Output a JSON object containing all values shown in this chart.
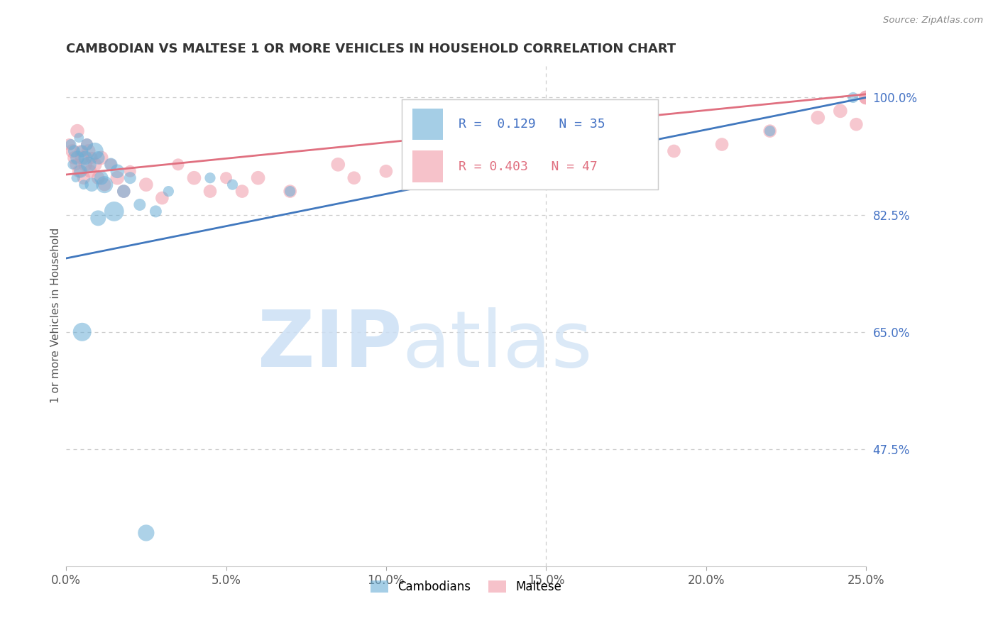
{
  "title": "CAMBODIAN VS MALTESE 1 OR MORE VEHICLES IN HOUSEHOLD CORRELATION CHART",
  "source": "Source: ZipAtlas.com",
  "ylabel": "1 or more Vehicles in Household",
  "xlim": [
    0.0,
    25.0
  ],
  "ylim": [
    30.0,
    105.0
  ],
  "xtick_labels": [
    "0.0%",
    "5.0%",
    "10.0%",
    "15.0%",
    "20.0%",
    "25.0%"
  ],
  "xtick_values": [
    0.0,
    5.0,
    10.0,
    15.0,
    20.0,
    25.0
  ],
  "ytick_right_labels": [
    "100.0%",
    "82.5%",
    "65.0%",
    "47.5%"
  ],
  "ytick_right_values": [
    100.0,
    82.5,
    65.0,
    47.5
  ],
  "grid_color": "#cccccc",
  "background_color": "#ffffff",
  "cambodian_color": "#6aaed6",
  "maltese_color": "#f09aa8",
  "cambodian_line_color": "#4178be",
  "maltese_line_color": "#e07080",
  "cam_line_x0": 0.0,
  "cam_line_y0": 76.0,
  "cam_line_x1": 25.0,
  "cam_line_y1": 100.0,
  "mal_line_x0": 0.0,
  "mal_line_y0": 88.5,
  "mal_line_x1": 25.0,
  "mal_line_y1": 100.5,
  "cam_x": [
    0.15,
    0.2,
    0.25,
    0.3,
    0.35,
    0.4,
    0.45,
    0.5,
    0.55,
    0.6,
    0.65,
    0.7,
    0.8,
    0.9,
    1.0,
    1.1,
    1.2,
    1.4,
    1.6,
    1.8,
    2.0,
    2.3,
    2.8,
    3.2,
    4.5,
    5.2,
    7.0,
    13.5,
    14.5,
    22.0,
    24.6,
    0.5,
    1.0,
    1.5,
    2.5
  ],
  "cam_y": [
    93,
    90,
    92,
    88,
    91,
    94,
    89,
    92,
    87,
    91,
    93,
    90,
    87,
    92,
    91,
    88,
    87,
    90,
    89,
    86,
    88,
    84,
    83,
    86,
    88,
    87,
    86,
    88,
    87,
    95,
    100,
    65,
    82,
    83,
    35
  ],
  "cam_s": [
    120,
    100,
    150,
    80,
    200,
    100,
    180,
    150,
    100,
    200,
    150,
    250,
    200,
    300,
    180,
    200,
    300,
    180,
    200,
    180,
    150,
    150,
    150,
    120,
    120,
    120,
    120,
    120,
    120,
    120,
    120,
    350,
    250,
    400,
    280
  ],
  "mal_x": [
    0.1,
    0.2,
    0.25,
    0.3,
    0.35,
    0.4,
    0.45,
    0.5,
    0.55,
    0.6,
    0.65,
    0.7,
    0.75,
    0.8,
    0.9,
    1.0,
    1.1,
    1.2,
    1.4,
    1.6,
    1.8,
    2.0,
    2.5,
    3.0,
    3.5,
    4.0,
    4.5,
    5.0,
    5.5,
    6.0,
    7.0,
    8.5,
    9.0,
    10.0,
    11.5,
    13.0,
    14.5,
    16.0,
    18.0,
    19.0,
    20.5,
    22.0,
    23.5,
    24.2,
    24.7,
    25.0,
    25.0
  ],
  "mal_y": [
    93,
    92,
    91,
    90,
    95,
    89,
    92,
    91,
    88,
    90,
    93,
    92,
    89,
    91,
    90,
    88,
    91,
    87,
    90,
    88,
    86,
    89,
    87,
    85,
    90,
    88,
    86,
    88,
    86,
    88,
    86,
    90,
    88,
    89,
    91,
    90,
    92,
    90,
    93,
    92,
    93,
    95,
    97,
    98,
    96,
    100,
    100
  ],
  "mal_s": [
    150,
    200,
    180,
    150,
    200,
    180,
    150,
    200,
    180,
    200,
    150,
    200,
    180,
    150,
    200,
    180,
    200,
    180,
    150,
    200,
    180,
    150,
    200,
    180,
    150,
    200,
    180,
    150,
    180,
    200,
    180,
    200,
    180,
    180,
    200,
    180,
    180,
    180,
    180,
    180,
    180,
    180,
    200,
    200,
    180,
    200,
    200
  ]
}
